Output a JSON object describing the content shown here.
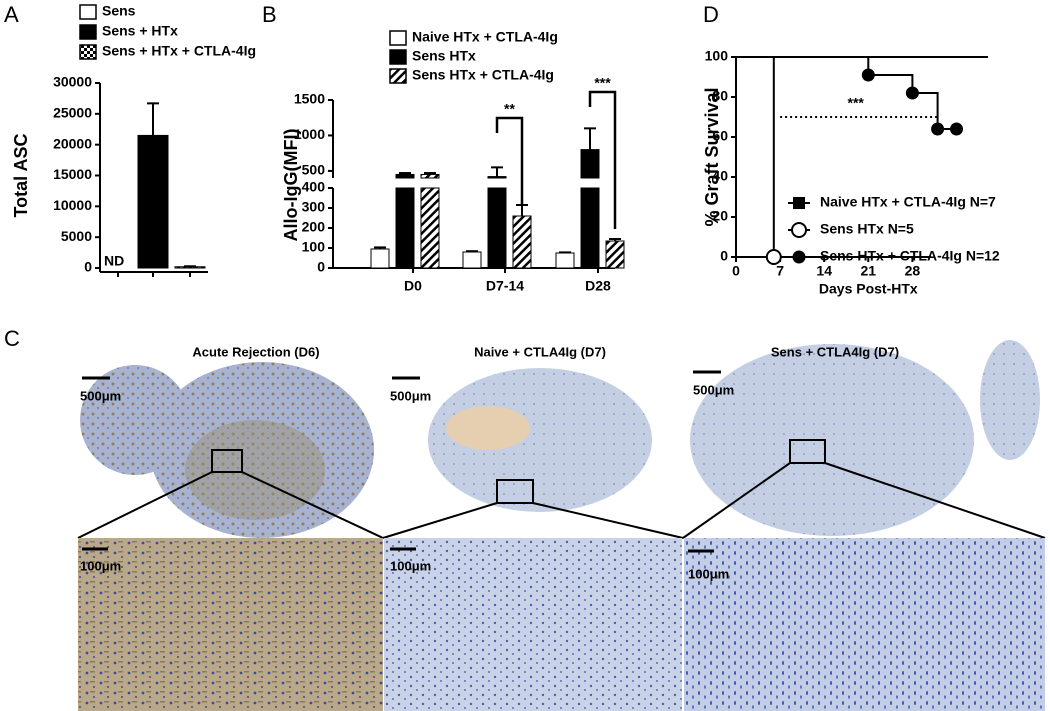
{
  "panel_labels": [
    "A",
    "B",
    "C",
    "D"
  ],
  "chart_data": [
    {
      "type": "bar",
      "ylabel": "Total ASC",
      "ylim": [
        0,
        30000
      ],
      "yticks": [
        0,
        5000,
        10000,
        15000,
        20000,
        25000,
        30000
      ],
      "annotations": [
        "ND"
      ],
      "series": [
        {
          "name": "Sens",
          "color": "#ffffff",
          "pattern": "none",
          "values": [
            null
          ],
          "errors": [
            null
          ]
        },
        {
          "name": "Sens + HTx",
          "color": "#000000",
          "pattern": "none",
          "values": [
            21500
          ],
          "errors": [
            5200
          ]
        },
        {
          "name": "Sens + HTx + CTLA-4Ig",
          "color": "#000000",
          "pattern": "checker",
          "values": [
            200
          ],
          "errors": [
            80
          ]
        }
      ]
    },
    {
      "type": "grouped_bar",
      "ylabel": "Allo-IgG(MFI)",
      "ylim": [
        0,
        1500
      ],
      "ybreak": 400,
      "yticks": [
        0,
        100,
        200,
        300,
        400,
        500,
        1000,
        1500
      ],
      "categories": [
        "D0",
        "D7-14",
        "D28"
      ],
      "annotations": [
        "**",
        "***"
      ],
      "series": [
        {
          "name": "Naive HTx + CTLA-4Ig",
          "color": "#ffffff",
          "pattern": "none",
          "values": [
            95,
            80,
            75
          ],
          "errors": [
            8,
            4,
            3
          ]
        },
        {
          "name": "Sens HTx",
          "color": "#000000",
          "pattern": "none",
          "values": [
            450,
            420,
            800
          ],
          "errors": [
            20,
            130,
            300
          ]
        },
        {
          "name": "Sens HTx + CTLA-4Ig",
          "color": "#000000",
          "pattern": "hatch",
          "values": [
            450,
            260,
            135
          ],
          "errors": [
            20,
            55,
            10
          ]
        }
      ]
    },
    {
      "type": "survival",
      "ylabel": "% Graft Survival",
      "xlabel": "Days Post-HTx",
      "xlim": [
        0,
        40
      ],
      "xticks": [
        0,
        7,
        14,
        21,
        28
      ],
      "ylim": [
        0,
        100
      ],
      "yticks": [
        0,
        20,
        40,
        60,
        80,
        100
      ],
      "annotations": [
        "***"
      ],
      "reference_line": {
        "y": 70,
        "x": [
          7,
          32
        ]
      },
      "series": [
        {
          "name": "Naive HTx + CTLA-4Ig N=7",
          "color": "#000000",
          "marker": "square",
          "x": [
            0,
            40
          ],
          "values": [
            100,
            100
          ]
        },
        {
          "name": "Sens HTx N=5",
          "color": "#000000",
          "marker": "circle-open",
          "x": [
            0,
            6,
            6
          ],
          "values": [
            100,
            100,
            0
          ]
        },
        {
          "name": "Sens HTx + CTLA-4Ig N=12",
          "color": "#000000",
          "marker": "circle",
          "x": [
            0,
            21,
            28,
            32,
            35
          ],
          "values": [
            100,
            91,
            82,
            64,
            64
          ]
        }
      ]
    }
  ],
  "histology": {
    "panels": [
      {
        "title": "Acute Rejection (D6)",
        "scale_low": "500μm",
        "scale_high": "100μm"
      },
      {
        "title": "Naive + CTLA4Ig (D7)",
        "scale_low": "500μm",
        "scale_high": "100μm"
      },
      {
        "title": "Sens + CTLA4Ig (D7)",
        "scale_low": "500μm",
        "scale_high": "100μm"
      }
    ]
  }
}
